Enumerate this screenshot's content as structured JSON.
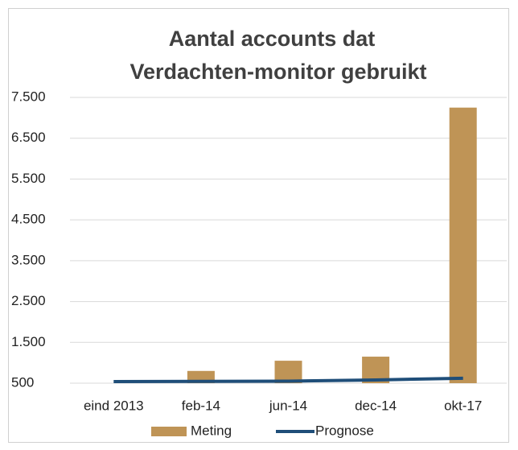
{
  "chart_data": {
    "type": "bar_line",
    "title": [
      "Aantal accounts dat",
      "Verdachten-monitor gebruikt"
    ],
    "categories": [
      "eind 2013",
      "feb-14",
      "jun-14",
      "dec-14",
      "okt-17"
    ],
    "series": [
      {
        "name": "Meting",
        "type": "bar",
        "color": "#bf9456",
        "values": [
          null,
          800,
          1050,
          1150,
          7250
        ]
      },
      {
        "name": "Prognose",
        "type": "line",
        "color": "#1f4e79",
        "values": [
          540,
          545,
          550,
          580,
          620
        ]
      }
    ],
    "ylim": [
      500,
      7500
    ],
    "yticks": [
      {
        "value": 500,
        "label": "500"
      },
      {
        "value": 1500,
        "label": "1.500"
      },
      {
        "value": 2500,
        "label": "2.500"
      },
      {
        "value": 3500,
        "label": "3.500"
      },
      {
        "value": 4500,
        "label": "4.500"
      },
      {
        "value": 5500,
        "label": "5.500"
      },
      {
        "value": 6500,
        "label": "6.500"
      },
      {
        "value": 7500,
        "label": "7.500"
      }
    ],
    "grid": true,
    "legend": "bottom"
  }
}
